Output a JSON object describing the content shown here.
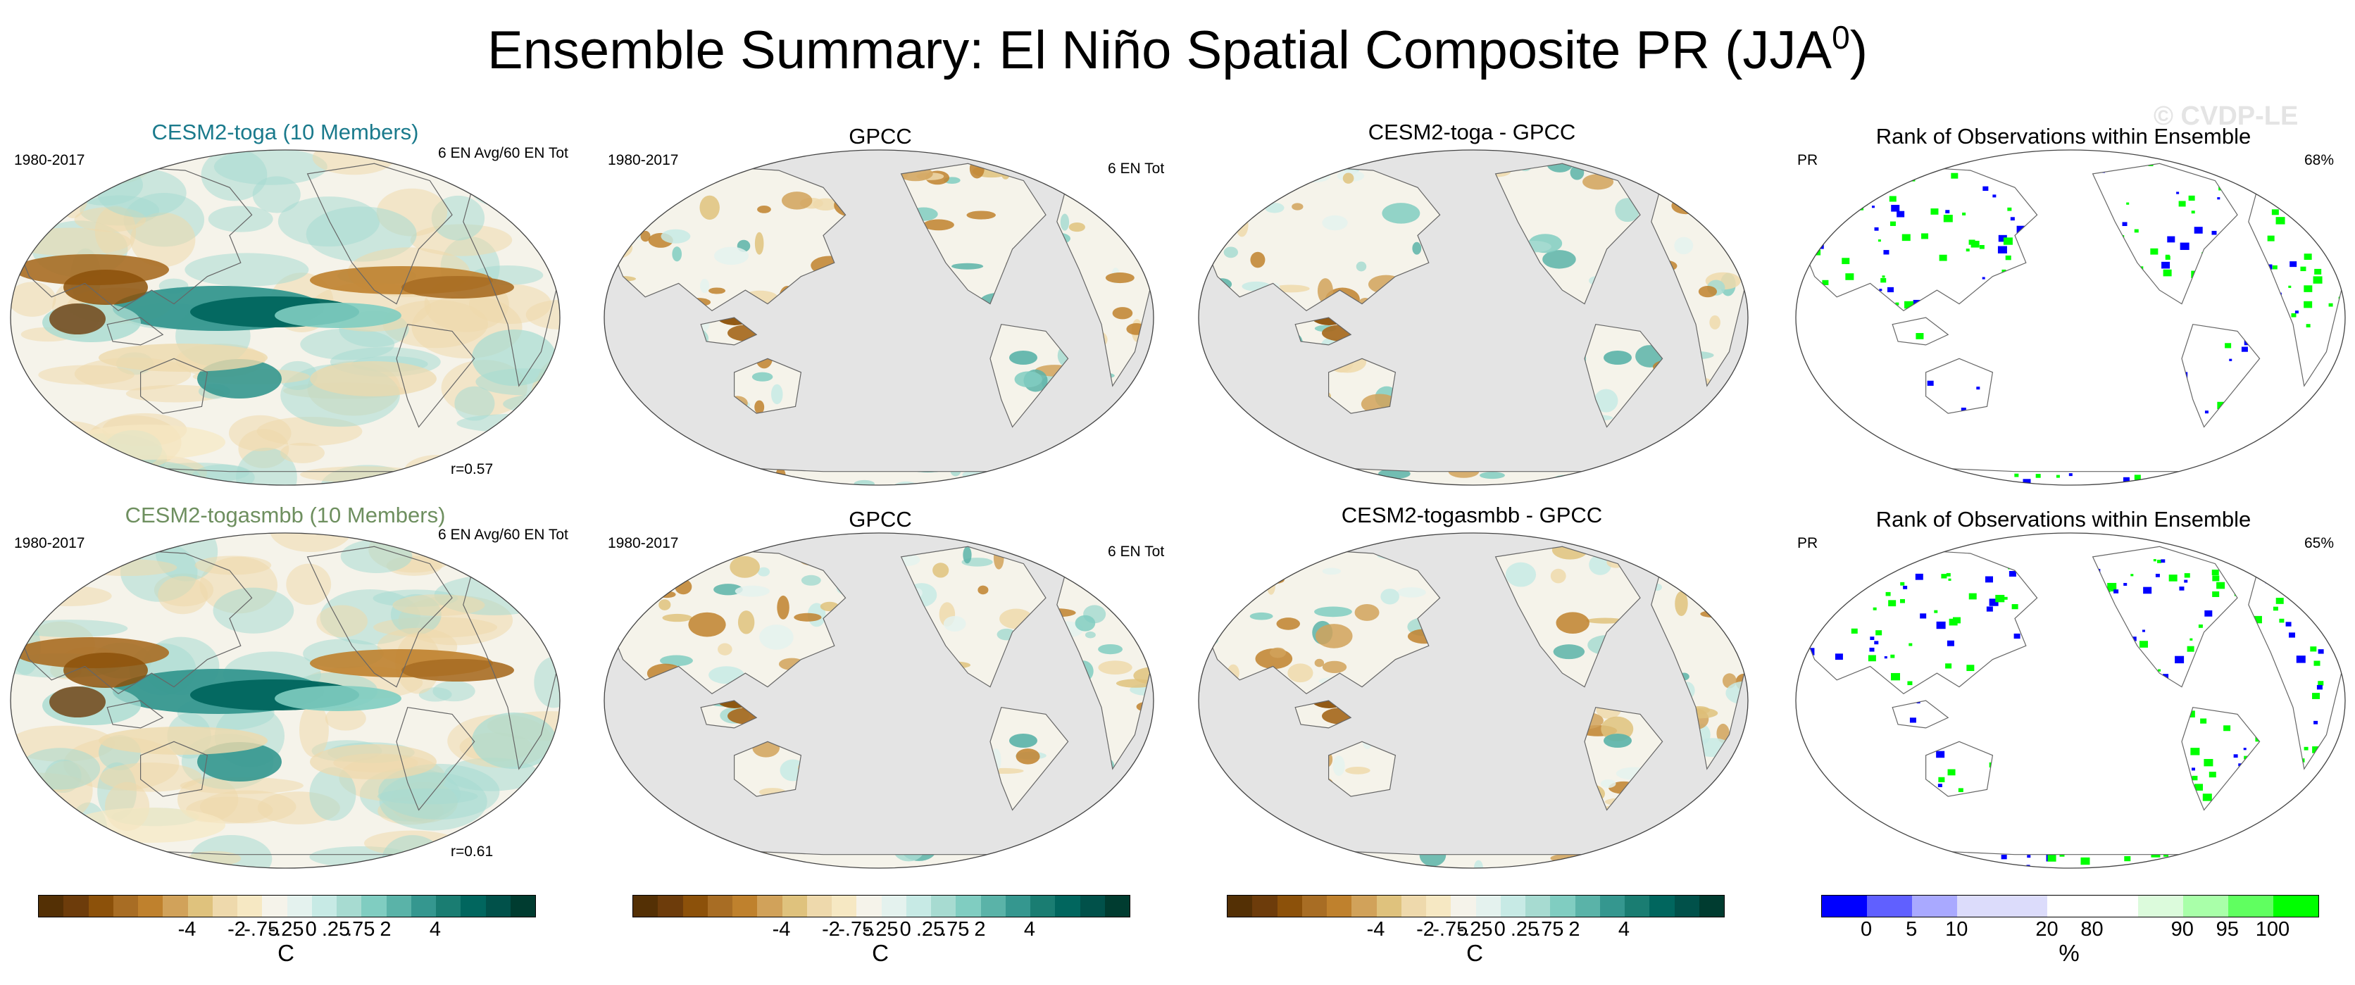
{
  "figure": {
    "title": "Ensemble Summary: El Niño Spatial Composite PR (JJA",
    "title_sup": "0",
    "title_close": ")",
    "watermark": "© CVDP-LE"
  },
  "colors": {
    "title_toga": "#1a7a8c",
    "title_togasmbb": "#6e8f5f",
    "map_ocean_gray": "#e4e4e4",
    "rank_low": "#0000ff",
    "rank_high": "#00ff00"
  },
  "panels": {
    "row1": {
      "p1": {
        "title": "CESM2-toga (10 Members)",
        "left": "1980-2017",
        "right": "6 EN Avg/60 EN Tot",
        "corr": "r=0.57"
      },
      "p2": {
        "title": "GPCC",
        "left": "1980-2017",
        "right": "6 EN Tot"
      },
      "p3": {
        "title": "CESM2-toga - GPCC"
      },
      "p4": {
        "title": "Rank of Observations within Ensemble",
        "left": "PR",
        "right": "68%"
      }
    },
    "row2": {
      "p1": {
        "title": "CESM2-togasmbb (10 Members)",
        "left": "1980-2017",
        "right": "6 EN Avg/60 EN Tot",
        "corr": "r=0.61"
      },
      "p2": {
        "title": "GPCC",
        "left": "1980-2017",
        "right": "6 EN Tot"
      },
      "p3": {
        "title": "CESM2-togasmbb - GPCC"
      },
      "p4": {
        "title": "Rank of Observations within Ensemble",
        "left": "PR",
        "right": "65%"
      }
    }
  },
  "colorbars": {
    "div": {
      "colors": [
        "#543005",
        "#6d3c0b",
        "#8c510a",
        "#a86d24",
        "#bf812d",
        "#d1a25a",
        "#dfc27d",
        "#eed9ac",
        "#f6e8c3",
        "#f5f3ea",
        "#e4f2ee",
        "#c7eae5",
        "#a7dbd1",
        "#80cdc1",
        "#5ab3a8",
        "#35978f",
        "#1a7d72",
        "#01665e",
        "#01514a",
        "#003c30"
      ],
      "labels": [
        "-4",
        "-2",
        "-.75",
        "-.25",
        "0",
        ".25",
        ".75",
        "2",
        "4"
      ],
      "unit": "C"
    },
    "rank": {
      "colors": [
        "#0000ff",
        "#6060ff",
        "#a9a9ff",
        "#dcdcfb",
        "#dcdcfb",
        "#ffffff",
        "#ffffff",
        "#dcfbdc",
        "#a9ffa9",
        "#60ff60",
        "#00ff00"
      ],
      "labels": [
        "0",
        "5",
        "10",
        "20",
        "80",
        "90",
        "95",
        "100"
      ],
      "unit": "%"
    }
  }
}
